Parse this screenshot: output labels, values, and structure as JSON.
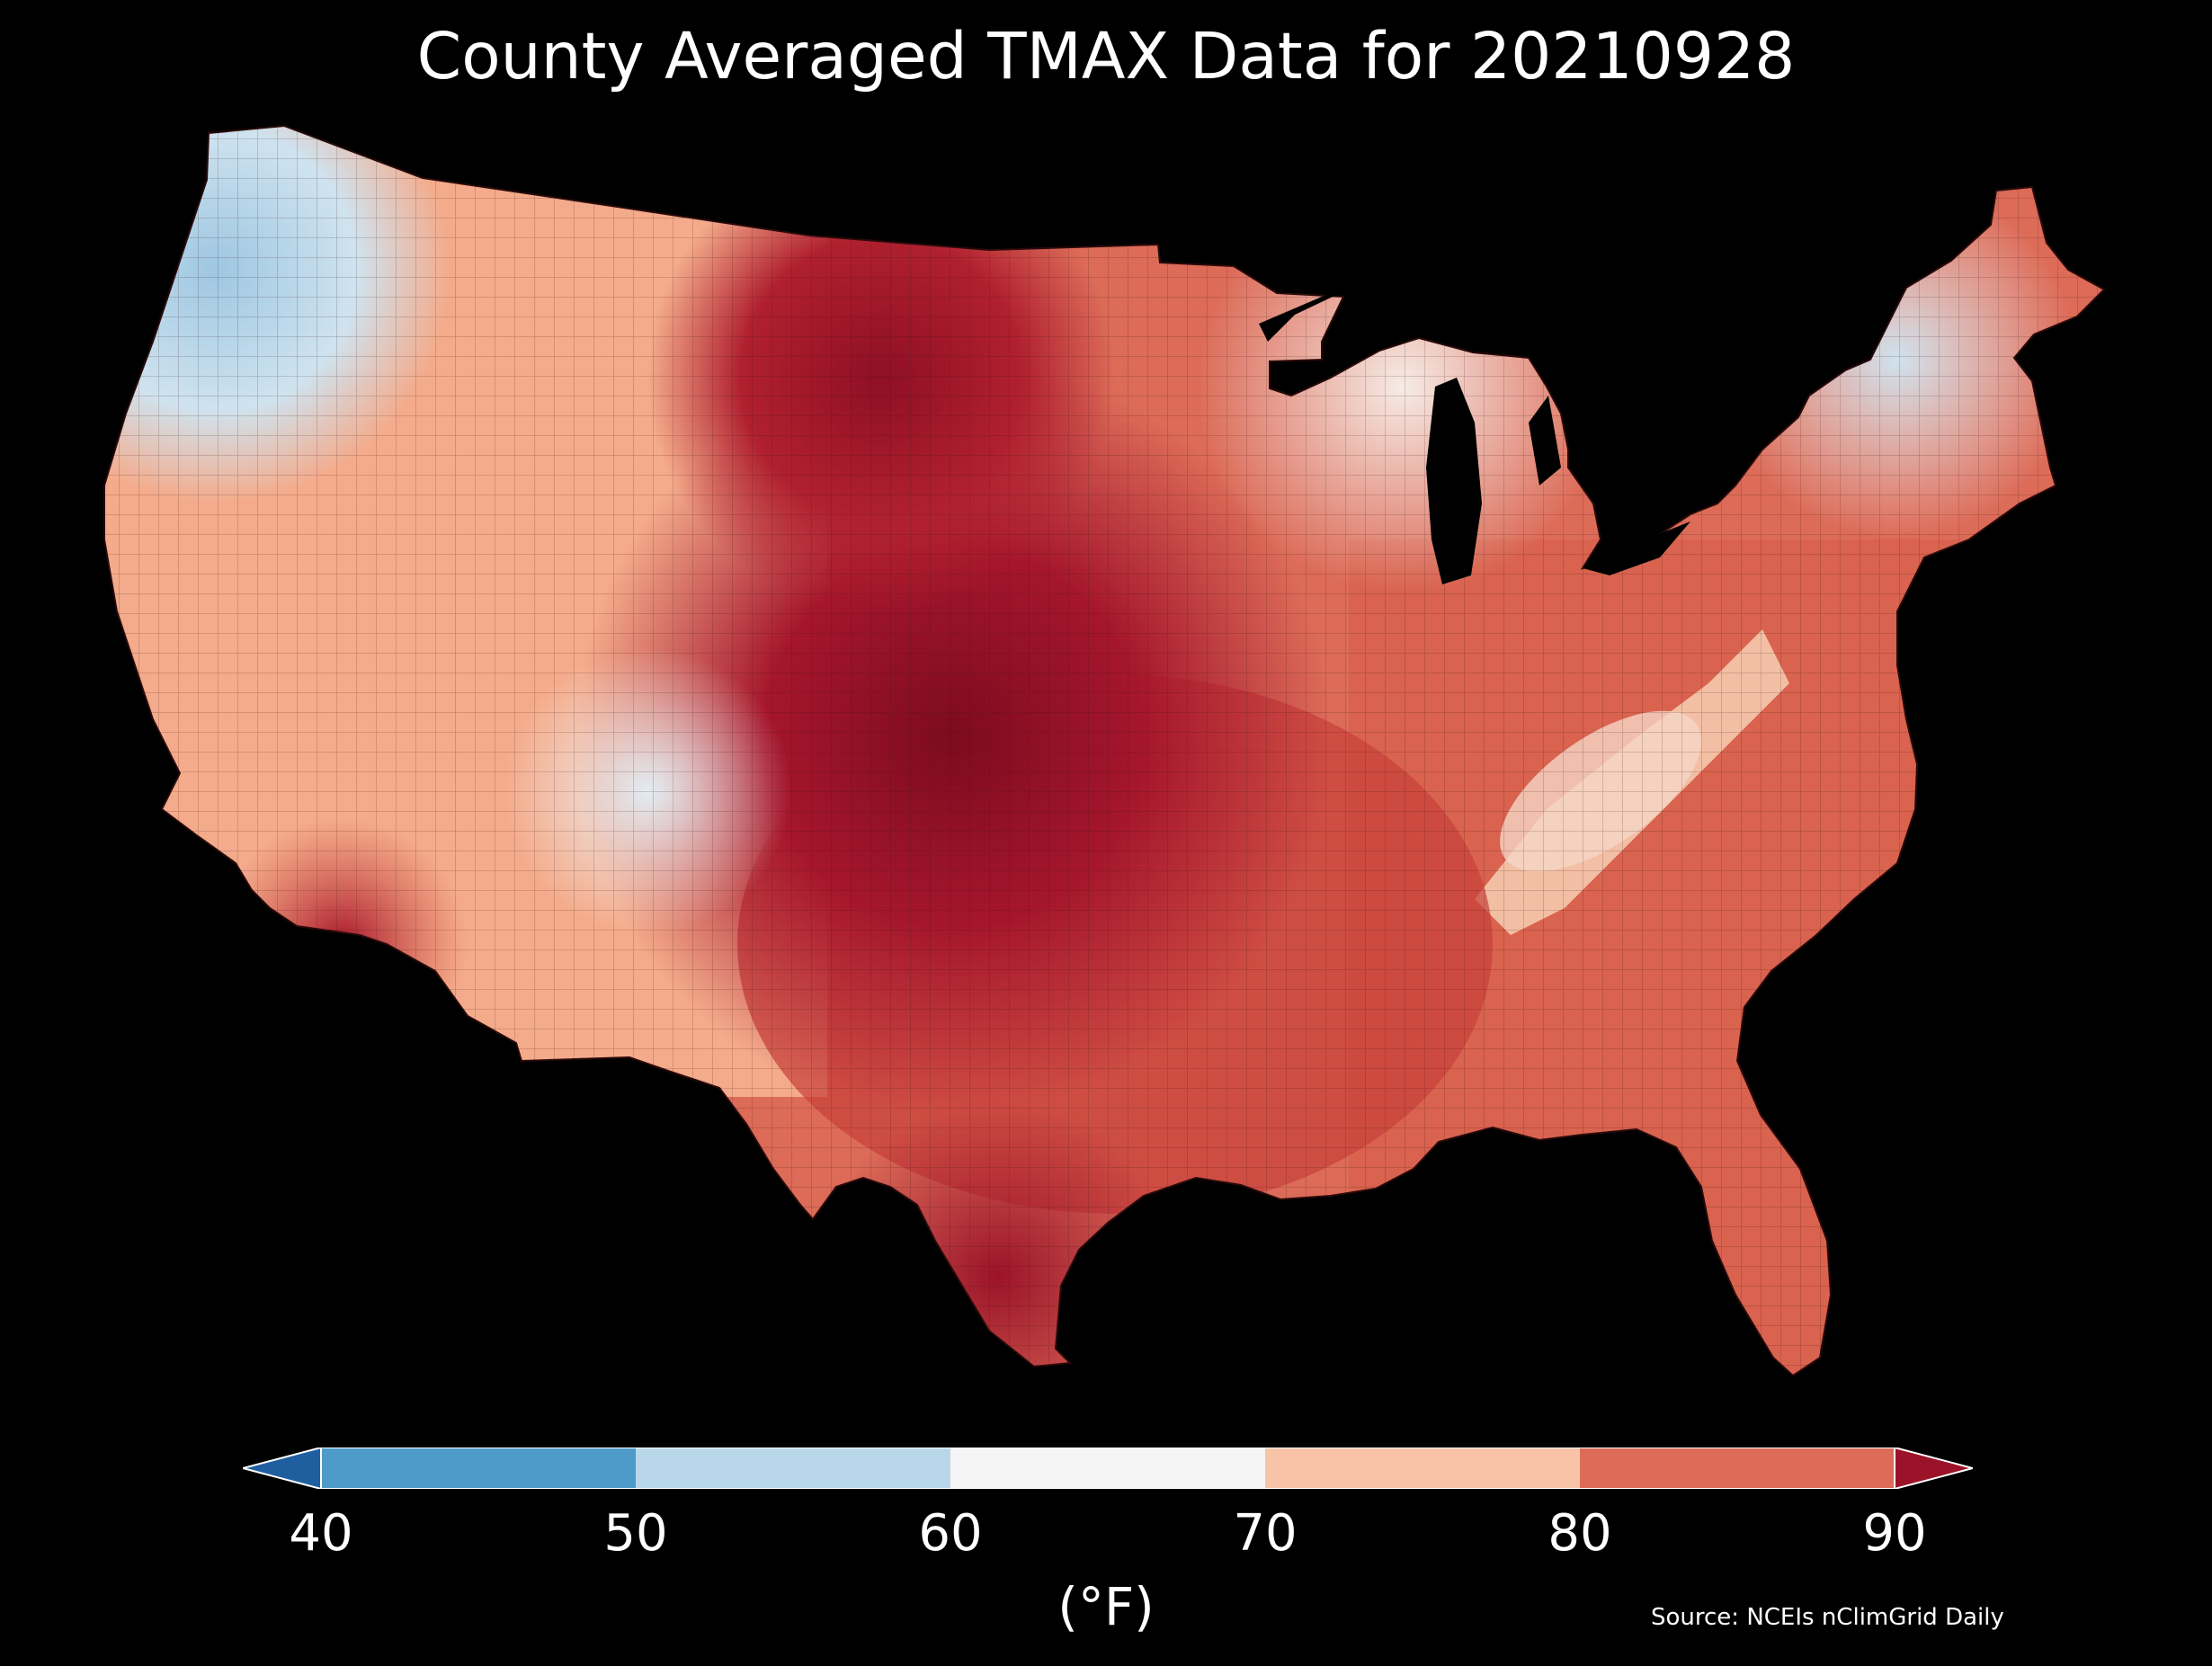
{
  "title": "County Averaged TMAX Data for 20210928",
  "legend": {
    "units": "(°F)",
    "ticks": [
      "40",
      "50",
      "60",
      "70",
      "80",
      "90"
    ],
    "bins": [
      {
        "range": "< 40",
        "color": "#1f5fa0"
      },
      {
        "range": "40–50",
        "color": "#4e9ac9"
      },
      {
        "range": "50–60",
        "color": "#b8d8ea"
      },
      {
        "range": "60–70",
        "color": "#f5f5f5"
      },
      {
        "range": "70–80",
        "color": "#f8c3a6"
      },
      {
        "range": "80–90",
        "color": "#dc6b58"
      },
      {
        "range": "> 90",
        "color": "#9b1329"
      }
    ]
  },
  "source": "Source: NCEIs nClimGrid Daily",
  "map": {
    "region": "Contiguous United States",
    "granularity": "county",
    "variable": "TMAX",
    "background": "#000000",
    "regional_pattern": [
      {
        "region": "Pacific Northwest coast",
        "class": "50–60"
      },
      {
        "region": "Northern Rockies / Idaho",
        "class": "60–70"
      },
      {
        "region": "Great Basin / Nevada",
        "class": "70–80"
      },
      {
        "region": "Southern Arizona",
        "class": "> 90"
      },
      {
        "region": "Central / Southern Rockies",
        "class": "60–70"
      },
      {
        "region": "Northern Great Plains",
        "class": "> 90"
      },
      {
        "region": "Central Great Plains / Kansas",
        "class": "> 90"
      },
      {
        "region": "South Texas",
        "class": "> 90"
      },
      {
        "region": "Upper Midwest / Great Lakes",
        "class": "60–70"
      },
      {
        "region": "Midwest / Ohio Valley",
        "class": "80–90"
      },
      {
        "region": "Appalachians",
        "class": "70–80"
      },
      {
        "region": "Southeast / Gulf Coast",
        "class": "80–90"
      },
      {
        "region": "Northern New England",
        "class": "50–60"
      }
    ]
  }
}
